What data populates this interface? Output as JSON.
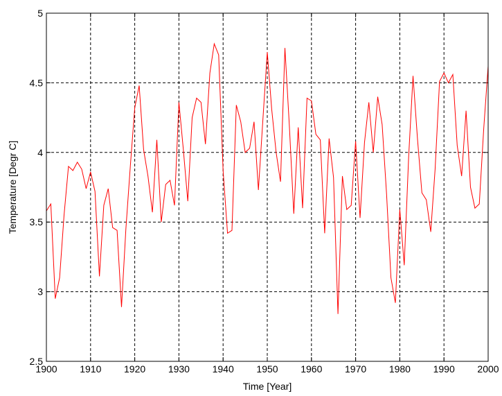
{
  "chart_data": {
    "type": "line",
    "title": "",
    "xlabel": "Time [Year]",
    "ylabel": "Temperature [Degr C]",
    "xlim": [
      1900,
      2000
    ],
    "ylim": [
      2.5,
      5
    ],
    "grid": true,
    "x_ticks": [
      1900,
      1910,
      1920,
      1930,
      1940,
      1950,
      1960,
      1970,
      1980,
      1990,
      2000
    ],
    "y_ticks": [
      2.5,
      3,
      3.5,
      4,
      4.5,
      5
    ],
    "x_tick_labels": [
      "1900",
      "1910",
      "1920",
      "1930",
      "1940",
      "1950",
      "1960",
      "1970",
      "1980",
      "1990",
      "2000"
    ],
    "y_tick_labels": [
      "2.5",
      "3",
      "3.5",
      "4",
      "4.5",
      "5"
    ],
    "series": [
      {
        "name": "",
        "color": "#ff0000",
        "x": [
          1900,
          1901,
          1902,
          1903,
          1904,
          1905,
          1906,
          1907,
          1908,
          1909,
          1910,
          1911,
          1912,
          1913,
          1914,
          1915,
          1916,
          1917,
          1918,
          1919,
          1920,
          1921,
          1922,
          1923,
          1924,
          1925,
          1926,
          1927,
          1928,
          1929,
          1930,
          1931,
          1932,
          1933,
          1934,
          1935,
          1936,
          1937,
          1938,
          1939,
          1940,
          1941,
          1942,
          1943,
          1944,
          1945,
          1946,
          1947,
          1948,
          1949,
          1950,
          1951,
          1952,
          1953,
          1954,
          1955,
          1956,
          1957,
          1958,
          1959,
          1960,
          1961,
          1962,
          1963,
          1964,
          1965,
          1966,
          1967,
          1968,
          1969,
          1970,
          1971,
          1972,
          1973,
          1974,
          1975,
          1976,
          1977,
          1978,
          1979,
          1980,
          1981,
          1982,
          1983,
          1984,
          1985,
          1986,
          1987,
          1988,
          1989,
          1990,
          1991,
          1992,
          1993,
          1994,
          1995,
          1996,
          1997,
          1998,
          1999,
          2000
        ],
        "y": [
          3.58,
          3.63,
          2.95,
          3.1,
          3.55,
          3.9,
          3.87,
          3.93,
          3.88,
          3.74,
          3.86,
          3.72,
          3.11,
          3.62,
          3.74,
          3.46,
          3.44,
          2.89,
          3.45,
          3.9,
          4.32,
          4.48,
          4.02,
          3.83,
          3.57,
          4.09,
          3.5,
          3.77,
          3.8,
          3.62,
          4.36,
          4.02,
          3.65,
          4.25,
          4.39,
          4.36,
          4.06,
          4.57,
          4.78,
          4.7,
          3.87,
          3.42,
          3.44,
          4.34,
          4.22,
          4.0,
          4.03,
          4.22,
          3.73,
          4.23,
          4.72,
          4.31,
          4.0,
          3.79,
          4.75,
          4.19,
          3.56,
          4.18,
          3.6,
          4.39,
          4.37,
          4.13,
          4.09,
          3.42,
          4.1,
          3.82,
          2.84,
          3.83,
          3.59,
          3.62,
          4.08,
          3.53,
          4.07,
          4.36,
          4.0,
          4.4,
          4.2,
          3.7,
          3.1,
          2.92,
          3.59,
          3.19,
          3.97,
          4.55,
          4.1,
          3.71,
          3.66,
          3.43,
          3.88,
          4.51,
          4.57,
          4.5,
          4.56,
          4.05,
          3.83,
          4.3,
          3.75,
          3.6,
          3.63,
          4.17,
          4.62
        ]
      }
    ]
  }
}
